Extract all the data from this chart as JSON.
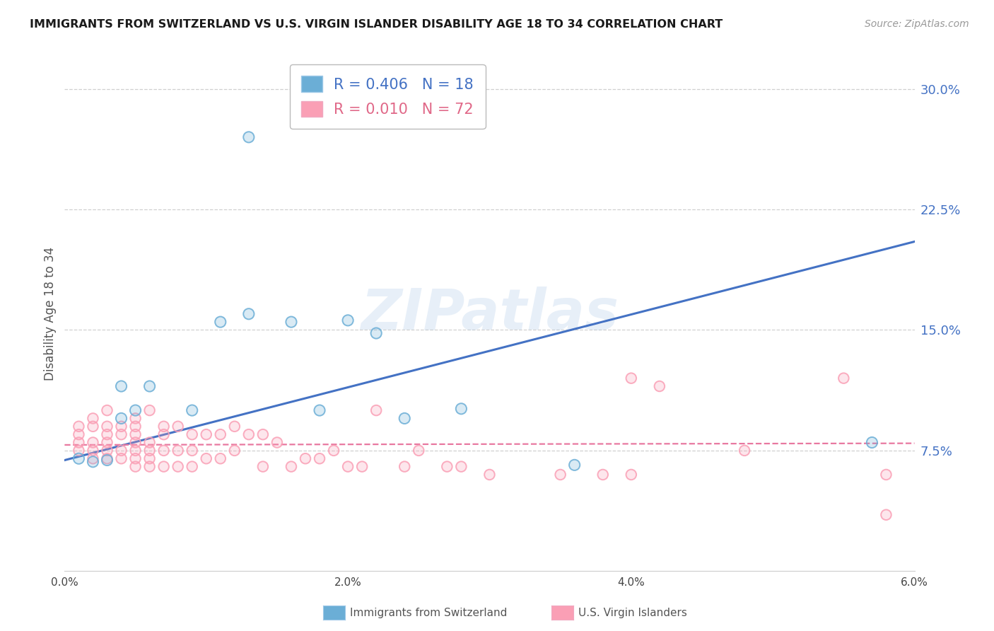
{
  "title": "IMMIGRANTS FROM SWITZERLAND VS U.S. VIRGIN ISLANDER DISABILITY AGE 18 TO 34 CORRELATION CHART",
  "source": "Source: ZipAtlas.com",
  "ylabel": "Disability Age 18 to 34",
  "x_label_blue": "Immigrants from Switzerland",
  "x_label_pink": "U.S. Virgin Islanders",
  "xmin": 0.0,
  "xmax": 0.06,
  "ymin": 0.0,
  "ymax": 0.32,
  "x_ticks": [
    0.0,
    0.02,
    0.04,
    0.06
  ],
  "x_tick_labels": [
    "0.0%",
    "2.0%",
    "4.0%",
    "6.0%"
  ],
  "y_ticks_right": [
    0.075,
    0.15,
    0.225,
    0.3
  ],
  "y_tick_labels_right": [
    "7.5%",
    "15.0%",
    "22.5%",
    "30.0%"
  ],
  "gridline_color": "#d0d0d0",
  "blue_color": "#6baed6",
  "pink_color": "#fa9fb5",
  "blue_line_color": "#4472c4",
  "pink_line_color": "#e878a0",
  "blue_R": 0.406,
  "blue_N": 18,
  "pink_R": 0.01,
  "pink_N": 72,
  "watermark": "ZIPatlas",
  "blue_scatter_x": [
    0.001,
    0.002,
    0.003,
    0.004,
    0.004,
    0.005,
    0.006,
    0.009,
    0.011,
    0.013,
    0.016,
    0.018,
    0.02,
    0.022,
    0.024,
    0.028,
    0.036,
    0.057
  ],
  "blue_scatter_y": [
    0.07,
    0.068,
    0.069,
    0.095,
    0.115,
    0.1,
    0.115,
    0.1,
    0.155,
    0.16,
    0.155,
    0.1,
    0.156,
    0.148,
    0.095,
    0.101,
    0.066,
    0.08
  ],
  "blue_outlier_x": [
    0.013
  ],
  "blue_outlier_y": [
    0.27
  ],
  "pink_scatter_x": [
    0.001,
    0.001,
    0.001,
    0.001,
    0.002,
    0.002,
    0.002,
    0.002,
    0.002,
    0.003,
    0.003,
    0.003,
    0.003,
    0.003,
    0.003,
    0.004,
    0.004,
    0.004,
    0.004,
    0.005,
    0.005,
    0.005,
    0.005,
    0.005,
    0.005,
    0.005,
    0.006,
    0.006,
    0.006,
    0.006,
    0.006,
    0.007,
    0.007,
    0.007,
    0.007,
    0.008,
    0.008,
    0.008,
    0.009,
    0.009,
    0.009,
    0.01,
    0.01,
    0.011,
    0.011,
    0.012,
    0.012,
    0.013,
    0.014,
    0.014,
    0.015,
    0.016,
    0.017,
    0.018,
    0.019,
    0.02,
    0.021,
    0.022,
    0.024,
    0.025,
    0.027,
    0.028,
    0.03,
    0.035,
    0.038,
    0.04,
    0.04,
    0.042,
    0.048,
    0.055,
    0.058,
    0.058
  ],
  "pink_scatter_y": [
    0.075,
    0.08,
    0.085,
    0.09,
    0.07,
    0.075,
    0.08,
    0.09,
    0.095,
    0.07,
    0.075,
    0.08,
    0.085,
    0.09,
    0.1,
    0.07,
    0.075,
    0.085,
    0.09,
    0.065,
    0.07,
    0.075,
    0.08,
    0.085,
    0.09,
    0.095,
    0.065,
    0.07,
    0.075,
    0.08,
    0.1,
    0.065,
    0.075,
    0.085,
    0.09,
    0.065,
    0.075,
    0.09,
    0.065,
    0.075,
    0.085,
    0.07,
    0.085,
    0.07,
    0.085,
    0.075,
    0.09,
    0.085,
    0.065,
    0.085,
    0.08,
    0.065,
    0.07,
    0.07,
    0.075,
    0.065,
    0.065,
    0.1,
    0.065,
    0.075,
    0.065,
    0.065,
    0.06,
    0.06,
    0.06,
    0.06,
    0.12,
    0.115,
    0.075,
    0.12,
    0.035,
    0.06
  ],
  "blue_line_x0": 0.0,
  "blue_line_x1": 0.06,
  "blue_line_y0": 0.069,
  "blue_line_y1": 0.205,
  "pink_line_x0": 0.0,
  "pink_line_x1": 0.06,
  "pink_line_y0": 0.0785,
  "pink_line_y1": 0.0795,
  "background_color": "#ffffff",
  "title_fontsize": 11.5,
  "source_fontsize": 10
}
